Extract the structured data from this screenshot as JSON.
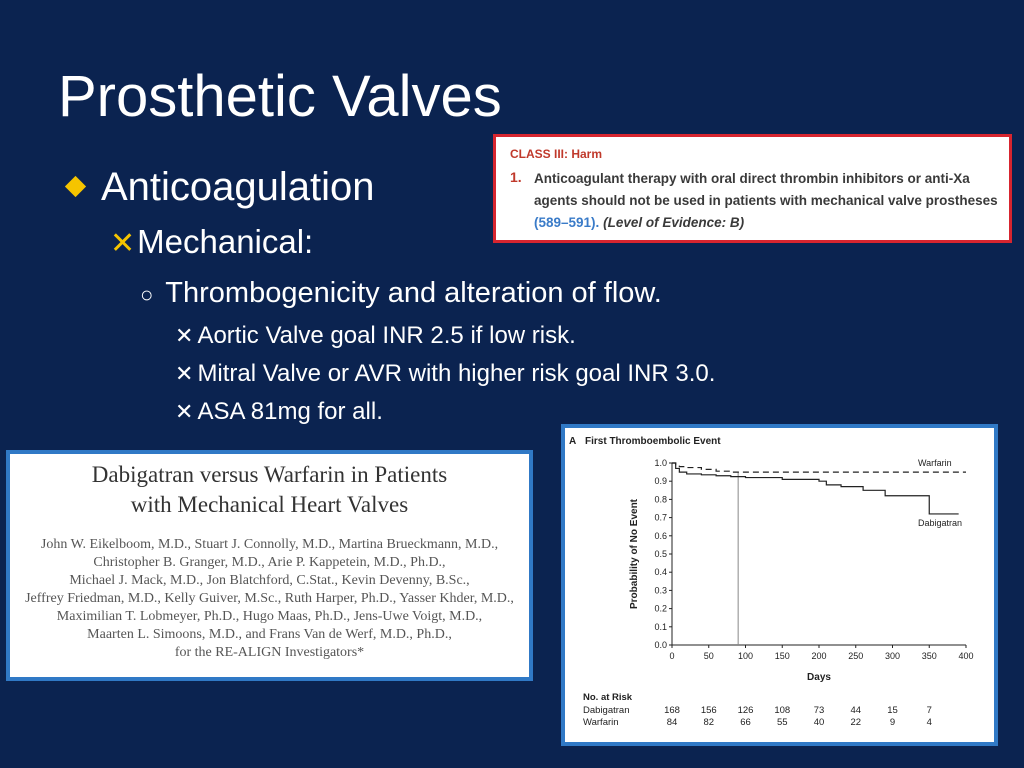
{
  "slide": {
    "title": "Prosthetic Valves",
    "bullets": {
      "level1": "Anticoagulation",
      "level2": "Mechanical:",
      "level3": "Thrombogenicity and alteration of flow.",
      "level4": [
        "Aortic Valve goal INR 2.5 if low risk.",
        "Mitral Valve or AVR with higher risk goal INR 3.0.",
        "ASA 81mg for all."
      ]
    }
  },
  "recommendation": {
    "class_label": "CLASS III: Harm",
    "number": "1.",
    "text": "Anticoagulant therapy with oral direct thrombin inhibitors or anti-Xa agents should not be used in patients with mechanical valve prostheses",
    "refs": "(589–591).",
    "level": "(Level of Evidence: B)"
  },
  "paper": {
    "title_line1": "Dabigatran versus Warfarin in Patients",
    "title_line2": "with Mechanical Heart Valves",
    "authors": [
      "John W. Eikelboom, M.D., Stuart J. Connolly, M.D., Martina Brueckmann, M.D.,",
      "Christopher B. Granger, M.D., Arie P. Kappetein, M.D., Ph.D.,",
      "Michael J. Mack, M.D., Jon Blatchford, C.Stat., Kevin Devenny, B.Sc.,",
      "Jeffrey Friedman, M.D., Kelly Guiver, M.Sc., Ruth Harper, Ph.D., Yasser Khder, M.D.,",
      "Maximilian T. Lobmeyer, Ph.D., Hugo Maas, Ph.D., Jens-Uwe Voigt, M.D.,",
      "Maarten L. Simoons, M.D., and Frans Van de Werf, M.D., Ph.D.,",
      "for the RE-ALIGN Investigators*"
    ]
  },
  "chart_data": {
    "type": "line",
    "panel_label": "A",
    "title": "First Thromboembolic Event",
    "xlabel": "Days",
    "ylabel": "Probability of No Event",
    "xlim": [
      0,
      400
    ],
    "ylim": [
      0,
      1.0
    ],
    "x_ticks": [
      0,
      50,
      100,
      150,
      200,
      250,
      300,
      350,
      400
    ],
    "y_ticks": [
      "0.0",
      "0.1",
      "0.2",
      "0.3",
      "0.4",
      "0.5",
      "0.6",
      "0.7",
      "0.8",
      "0.9",
      "1.0"
    ],
    "vertical_marker_x": 90,
    "series": [
      {
        "name": "Warfarin",
        "style": "dashed",
        "x": [
          0,
          5,
          10,
          20,
          40,
          60,
          80,
          400
        ],
        "y": [
          1.0,
          0.99,
          0.98,
          0.975,
          0.965,
          0.955,
          0.95,
          0.95
        ]
      },
      {
        "name": "Dabigatran",
        "style": "solid",
        "x": [
          0,
          5,
          10,
          20,
          40,
          60,
          80,
          100,
          150,
          200,
          210,
          230,
          260,
          290,
          350,
          390
        ],
        "y": [
          1.0,
          0.97,
          0.95,
          0.94,
          0.935,
          0.93,
          0.925,
          0.92,
          0.91,
          0.9,
          0.88,
          0.87,
          0.85,
          0.82,
          0.72,
          0.72
        ]
      }
    ],
    "risk_table": {
      "header": "No. at Risk",
      "rows": [
        {
          "label": "Dabigatran",
          "values": [
            "168",
            "156",
            "126",
            "108",
            "73",
            "44",
            "15",
            "7"
          ]
        },
        {
          "label": "Warfarin",
          "values": [
            "84",
            "82",
            "66",
            "55",
            "40",
            "22",
            "9",
            "4"
          ]
        }
      ]
    }
  }
}
